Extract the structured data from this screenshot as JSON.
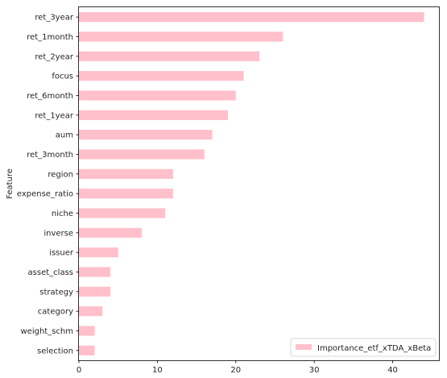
{
  "chart_data": {
    "type": "bar",
    "orientation": "horizontal",
    "categories": [
      "ret_3year",
      "ret_1month",
      "ret_2year",
      "focus",
      "ret_6month",
      "ret_1year",
      "aum",
      "ret_3month",
      "region",
      "expense_ratio",
      "niche",
      "inverse",
      "issuer",
      "asset_class",
      "strategy",
      "category",
      "weight_schm",
      "selection"
    ],
    "series": [
      {
        "name": "Importance_etf_xTDA_xBeta",
        "values": [
          44,
          26,
          23,
          21,
          20,
          19,
          17,
          16,
          12,
          12,
          11,
          8,
          5,
          4,
          4,
          3,
          2,
          2
        ],
        "color": "#ffc0cb"
      }
    ],
    "title": "",
    "xlabel": "",
    "ylabel": "Feature",
    "xlim": [
      0,
      46
    ],
    "xticks": [
      0,
      10,
      20,
      30,
      40
    ],
    "grid": false,
    "legend": "bottom-right"
  }
}
